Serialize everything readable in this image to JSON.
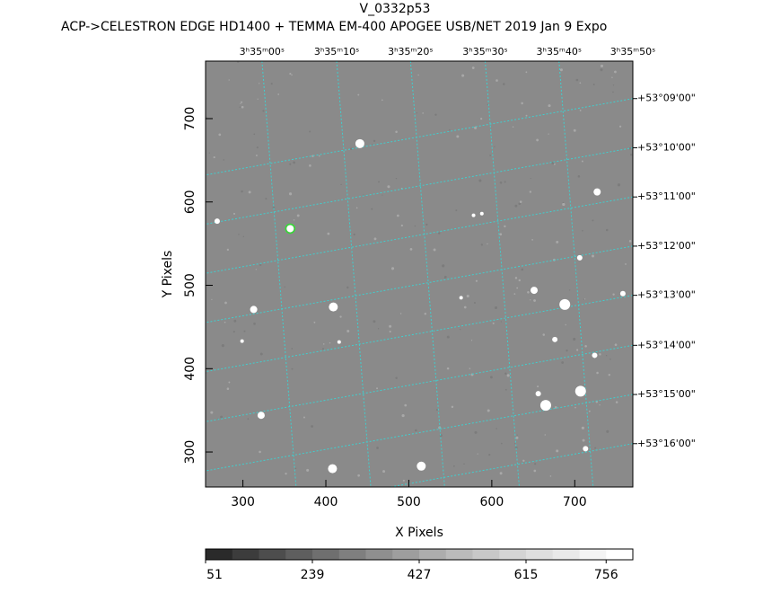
{
  "chart_data": {
    "type": "image",
    "title": "V_0332p53",
    "subtitle": "ACP->CELESTRON EDGE HD1400 + TEMMA EM-400 APOGEE USB/NET   2019 Jan  9     Expo",
    "xlabel": "X Pixels",
    "ylabel": "Y Pixels",
    "xlim": [
      255,
      770
    ],
    "ylim": [
      258,
      769
    ],
    "xticks": [
      300,
      400,
      500,
      600,
      700
    ],
    "yticks": [
      300,
      400,
      500,
      600,
      700
    ],
    "x2ticks": [
      {
        "value": 323,
        "label": "3ʰ35ᵐ00ˢ"
      },
      {
        "value": 413,
        "label": "3ʰ35ᵐ10ˢ"
      },
      {
        "value": 502,
        "label": "3ʰ35ᵐ20ˢ"
      },
      {
        "value": 592,
        "label": "3ʰ35ᵐ30ˢ"
      },
      {
        "value": 681,
        "label": "3ʰ35ᵐ40ˢ"
      },
      {
        "value": 770,
        "label": "3ʰ35ᵐ50ˢ"
      }
    ],
    "y2ticks": [
      {
        "value": 724,
        "label": "+53°09'00\""
      },
      {
        "value": 665,
        "label": "+53°10'00\""
      },
      {
        "value": 606,
        "label": "+53°11'00\""
      },
      {
        "value": 547,
        "label": "+53°12'00\""
      },
      {
        "value": 488,
        "label": "+53°13'00\""
      },
      {
        "value": 428,
        "label": "+53°14'00\""
      },
      {
        "value": 369,
        "label": "+53°15'00\""
      },
      {
        "value": 310,
        "label": "+53°16'00\""
      }
    ],
    "grid_color": "#3fcfcf",
    "background": "#8a8a8a",
    "star_color": "#ffffff",
    "target_color": "#33dd33",
    "target": 11,
    "stars": {
      "x": [
        441,
        313,
        409,
        688,
        651,
        707,
        665,
        322,
        408,
        515,
        727,
        357,
        269,
        676,
        724,
        656,
        706,
        578,
        588,
        299,
        416,
        713,
        758,
        563
      ],
      "y": [
        670,
        471,
        474,
        477,
        494,
        373,
        356,
        344,
        280,
        283,
        612,
        568,
        577,
        435,
        416,
        370,
        533,
        584,
        586,
        433,
        432,
        304,
        490,
        485
      ],
      "size": [
        5,
        4,
        5,
        6,
        4,
        6,
        6,
        4,
        5,
        5,
        4,
        4,
        3,
        3,
        3,
        3,
        3,
        2,
        2,
        2,
        2,
        3,
        3,
        2
      ]
    },
    "colorbar": {
      "lim": [
        51,
        803
      ],
      "ticks": [
        51,
        239,
        427,
        615,
        756
      ],
      "colors": [
        "#2a2a2a",
        "#3c3c3c",
        "#4d4d4d",
        "#5e5e5e",
        "#6f6f6f",
        "#7f7f7f",
        "#8f8f8f",
        "#9e9e9e",
        "#adadad",
        "#bbbbbb",
        "#c8c8c8",
        "#d4d4d4",
        "#dfdfdf",
        "#e9e9e9",
        "#f4f4f4",
        "#ffffff"
      ]
    }
  }
}
